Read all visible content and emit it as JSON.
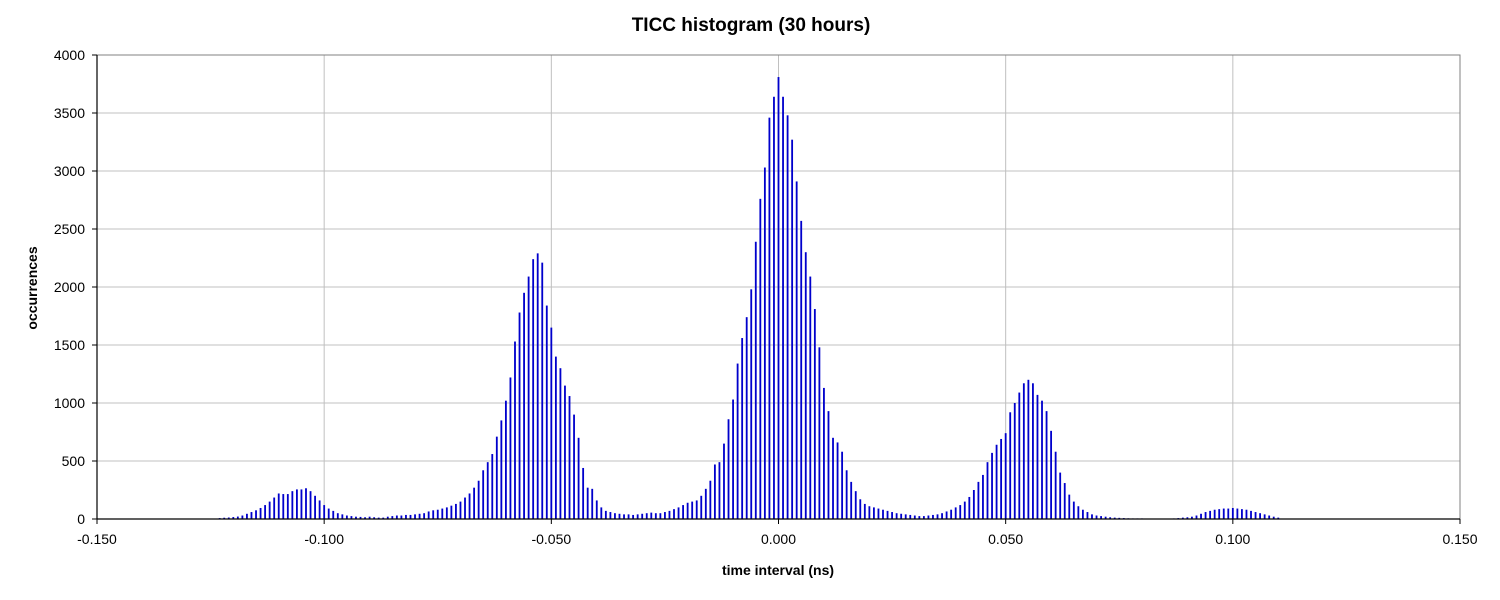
{
  "chart_data": {
    "type": "bar",
    "title": "TICC histogram (30 hours)",
    "xlabel": "time interval (ns)",
    "ylabel": "occurrences",
    "xlim": [
      -0.15,
      0.15
    ],
    "ylim": [
      0,
      4000
    ],
    "x_ticks": [
      "-0.150",
      "-0.100",
      "-0.050",
      "0.000",
      "0.050",
      "0.100",
      "0.150"
    ],
    "y_ticks": [
      "0",
      "500",
      "1000",
      "1500",
      "2000",
      "2500",
      "3000",
      "3500",
      "4000"
    ],
    "grid": true,
    "legend": "none",
    "bar_color": "#0000CC",
    "bin_width": 0.001,
    "x_start": -0.123,
    "values": [
      8,
      11,
      13,
      17,
      21,
      30,
      45,
      60,
      75,
      95,
      120,
      150,
      185,
      220,
      215,
      215,
      240,
      255,
      255,
      265,
      240,
      200,
      160,
      120,
      90,
      70,
      50,
      40,
      30,
      25,
      20,
      18,
      15,
      20,
      15,
      12,
      12,
      20,
      25,
      30,
      30,
      35,
      35,
      40,
      45,
      50,
      65,
      75,
      80,
      90,
      100,
      115,
      130,
      150,
      185,
      220,
      270,
      330,
      420,
      490,
      560,
      710,
      850,
      1020,
      1220,
      1530,
      1780,
      1950,
      2090,
      2240,
      2290,
      2210,
      1840,
      1650,
      1400,
      1300,
      1150,
      1060,
      900,
      700,
      440,
      270,
      260,
      160,
      100,
      70,
      60,
      50,
      45,
      40,
      40,
      35,
      40,
      45,
      50,
      55,
      50,
      50,
      60,
      70,
      85,
      100,
      120,
      140,
      150,
      160,
      200,
      260,
      330,
      470,
      490,
      650,
      860,
      1030,
      1340,
      1560,
      1740,
      1980,
      2390,
      2760,
      3030,
      3460,
      3640,
      3810,
      3640,
      3480,
      3270,
      2910,
      2570,
      2300,
      2090,
      1810,
      1480,
      1130,
      930,
      700,
      660,
      580,
      420,
      320,
      240,
      170,
      130,
      110,
      100,
      90,
      80,
      70,
      60,
      50,
      45,
      40,
      35,
      30,
      25,
      25,
      30,
      35,
      40,
      50,
      65,
      80,
      100,
      120,
      150,
      190,
      250,
      320,
      380,
      490,
      570,
      640,
      690,
      740,
      920,
      1000,
      1090,
      1170,
      1200,
      1170,
      1070,
      1020,
      930,
      760,
      580,
      400,
      310,
      210,
      150,
      110,
      80,
      60,
      40,
      30,
      25,
      20,
      15,
      12,
      10,
      8,
      6,
      5,
      5,
      5,
      4,
      4,
      4,
      4,
      4,
      4,
      5,
      8,
      12,
      15,
      20,
      30,
      45,
      60,
      70,
      80,
      85,
      90,
      90,
      95,
      90,
      85,
      80,
      70,
      60,
      50,
      40,
      30,
      20,
      12
    ]
  }
}
